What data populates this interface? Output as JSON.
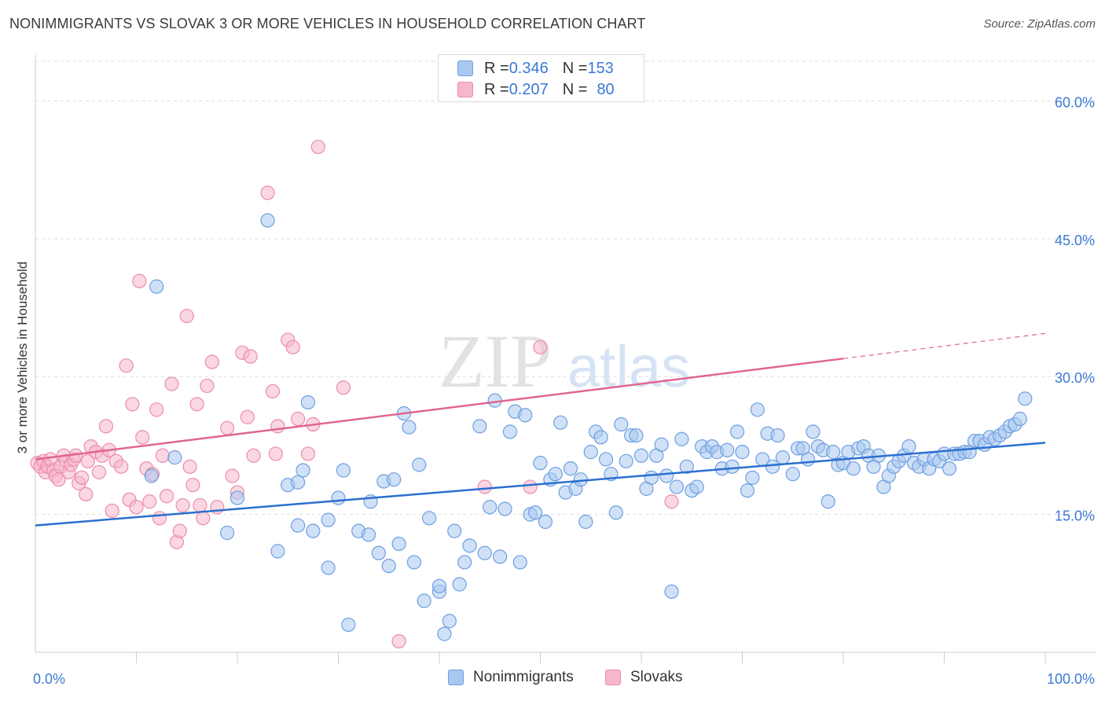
{
  "title": "NONIMMIGRANTS VS SLOVAK 3 OR MORE VEHICLES IN HOUSEHOLD CORRELATION CHART",
  "source": "Source: ZipAtlas.com",
  "watermark": {
    "zip": "ZIP",
    "atlas": "atlas"
  },
  "legend": {
    "rows": [
      {
        "r_label": "R = ",
        "r_value": "0.346",
        "n_label": "N = ",
        "n_value": "153"
      },
      {
        "r_label": "R = ",
        "r_value": "0.207",
        "n_label": "N = ",
        "n_value": "80"
      }
    ]
  },
  "bottom_legend": [
    "Nonimmigrants",
    "Slovaks"
  ],
  "colors": {
    "blue_fill": "#a9c8f0",
    "blue_stroke": "#6d9fe0",
    "blue_line": "#2b6fcf",
    "pink_fill": "#f6b7cb",
    "pink_stroke": "#ec8cab",
    "pink_line": "#e06690",
    "tick_label": "#3b78d6",
    "grid": "#dddddd"
  },
  "chart_data": {
    "type": "scatter",
    "xlabel": "",
    "ylabel": "3 or more Vehicles in Household",
    "xlim": [
      0,
      100
    ],
    "ylim": [
      0,
      65
    ],
    "x_ticks": [
      "0.0%",
      "100.0%"
    ],
    "y_ticks": [
      {
        "value": 15,
        "label": "15.0%"
      },
      {
        "value": 30,
        "label": "30.0%"
      },
      {
        "value": 45,
        "label": "45.0%"
      },
      {
        "value": 60,
        "label": "60.0%"
      }
    ],
    "grid": "horizontal dashed",
    "legend_position": "top-center",
    "series": [
      {
        "name": "Nonimmigrants",
        "color": "blue",
        "trend": {
          "x": [
            0,
            100
          ],
          "y": [
            13.8,
            22.8
          ],
          "dashed_from": null
        },
        "points": [
          [
            12,
            39.8
          ],
          [
            23,
            47
          ],
          [
            13.8,
            21.2
          ],
          [
            11.5,
            19.2
          ],
          [
            20,
            16.8
          ],
          [
            19,
            13
          ],
          [
            24,
            11
          ],
          [
            25,
            18.2
          ],
          [
            26,
            13.8
          ],
          [
            26,
            18.5
          ],
          [
            26.5,
            19.8
          ],
          [
            27,
            27.2
          ],
          [
            27.5,
            13.2
          ],
          [
            29,
            9.2
          ],
          [
            29,
            14.4
          ],
          [
            30,
            16.8
          ],
          [
            30.5,
            19.8
          ],
          [
            31,
            3
          ],
          [
            32,
            13.2
          ],
          [
            33,
            12.8
          ],
          [
            33.2,
            16.4
          ],
          [
            34,
            10.8
          ],
          [
            34.5,
            18.6
          ],
          [
            35,
            9.4
          ],
          [
            35.5,
            18.8
          ],
          [
            36,
            11.8
          ],
          [
            36.5,
            26
          ],
          [
            37,
            24.5
          ],
          [
            37.5,
            9.8
          ],
          [
            38,
            20.4
          ],
          [
            38.5,
            5.6
          ],
          [
            39,
            14.6
          ],
          [
            40,
            6.6
          ],
          [
            40,
            7.2
          ],
          [
            40.5,
            2
          ],
          [
            41,
            3.4
          ],
          [
            41.5,
            13.2
          ],
          [
            42,
            7.4
          ],
          [
            42.5,
            9.8
          ],
          [
            43,
            11.6
          ],
          [
            44,
            24.6
          ],
          [
            44.5,
            10.8
          ],
          [
            45,
            15.8
          ],
          [
            45.5,
            27.4
          ],
          [
            46,
            10.4
          ],
          [
            46.5,
            15.6
          ],
          [
            47,
            24
          ],
          [
            47.5,
            26.2
          ],
          [
            48,
            9.8
          ],
          [
            48.5,
            25.8
          ],
          [
            49,
            15
          ],
          [
            49.5,
            15.2
          ],
          [
            50,
            20.6
          ],
          [
            50.5,
            14.2
          ],
          [
            51,
            18.8
          ],
          [
            51.5,
            19.4
          ],
          [
            52,
            25
          ],
          [
            52.5,
            17.4
          ],
          [
            53,
            20
          ],
          [
            53.5,
            17.8
          ],
          [
            54,
            18.8
          ],
          [
            54.5,
            14.2
          ],
          [
            55,
            21.8
          ],
          [
            55.5,
            24
          ],
          [
            56,
            23.4
          ],
          [
            56.5,
            21
          ],
          [
            57,
            19.4
          ],
          [
            57.5,
            15.2
          ],
          [
            58,
            24.8
          ],
          [
            58.5,
            20.8
          ],
          [
            59,
            23.6
          ],
          [
            59.5,
            23.6
          ],
          [
            60,
            21.4
          ],
          [
            60.5,
            17.8
          ],
          [
            61,
            19
          ],
          [
            61.5,
            21.4
          ],
          [
            62,
            22.6
          ],
          [
            62.5,
            19.2
          ],
          [
            63,
            6.6
          ],
          [
            63.5,
            18
          ],
          [
            64,
            23.2
          ],
          [
            64.5,
            20.2
          ],
          [
            65,
            17.6
          ],
          [
            65.5,
            18
          ],
          [
            66,
            22.4
          ],
          [
            66.5,
            21.8
          ],
          [
            67,
            22.4
          ],
          [
            67.5,
            21.8
          ],
          [
            68,
            20
          ],
          [
            68.5,
            22
          ],
          [
            69,
            20.2
          ],
          [
            69.5,
            24
          ],
          [
            70,
            21.8
          ],
          [
            70.5,
            17.6
          ],
          [
            71,
            19
          ],
          [
            71.5,
            26.4
          ],
          [
            72,
            21
          ],
          [
            72.5,
            23.8
          ],
          [
            73,
            20.2
          ],
          [
            73.5,
            23.6
          ],
          [
            74,
            21.2
          ],
          [
            75,
            19.4
          ],
          [
            75.5,
            22.2
          ],
          [
            76,
            22.2
          ],
          [
            76.5,
            21
          ],
          [
            77,
            24
          ],
          [
            77.5,
            22.4
          ],
          [
            78,
            22
          ],
          [
            78.5,
            16.4
          ],
          [
            79,
            21.8
          ],
          [
            79.5,
            20.4
          ],
          [
            80,
            20.6
          ],
          [
            80.5,
            21.8
          ],
          [
            81,
            20
          ],
          [
            81.5,
            22.2
          ],
          [
            82,
            22.4
          ],
          [
            82.5,
            21.4
          ],
          [
            83,
            20.2
          ],
          [
            83.5,
            21.4
          ],
          [
            84,
            18
          ],
          [
            84.5,
            19.2
          ],
          [
            85,
            20.2
          ],
          [
            85.5,
            20.8
          ],
          [
            86,
            21.4
          ],
          [
            86.5,
            22.4
          ],
          [
            87,
            20.6
          ],
          [
            87.5,
            20.2
          ],
          [
            88,
            21
          ],
          [
            88.5,
            20
          ],
          [
            89,
            21
          ],
          [
            89.5,
            20.8
          ],
          [
            90,
            21.6
          ],
          [
            90.5,
            20
          ],
          [
            91,
            21.6
          ],
          [
            91.5,
            21.6
          ],
          [
            92,
            21.8
          ],
          [
            92.5,
            21.8
          ],
          [
            93,
            23
          ],
          [
            93.5,
            23
          ],
          [
            94,
            22.6
          ],
          [
            94.5,
            23.4
          ],
          [
            95,
            23.2
          ],
          [
            95.5,
            23.6
          ],
          [
            96,
            24
          ],
          [
            96.5,
            24.6
          ],
          [
            97,
            24.8
          ],
          [
            97.5,
            25.4
          ],
          [
            98,
            27.6
          ]
        ]
      },
      {
        "name": "Slovaks",
        "color": "pink",
        "trend": {
          "x": [
            0,
            100
          ],
          "y": [
            21.0,
            34.7
          ],
          "dashed_from": 80
        },
        "points": [
          [
            0.2,
            20.6
          ],
          [
            0.5,
            20.2
          ],
          [
            0.8,
            20.8
          ],
          [
            1,
            19.6
          ],
          [
            1.2,
            20.2
          ],
          [
            1.5,
            21
          ],
          [
            1.8,
            19.8
          ],
          [
            2,
            19.2
          ],
          [
            2.3,
            18.8
          ],
          [
            2.5,
            20.2
          ],
          [
            2.8,
            21.4
          ],
          [
            3,
            20.8
          ],
          [
            3.3,
            19.6
          ],
          [
            3.5,
            20.4
          ],
          [
            3.8,
            21
          ],
          [
            4,
            21.4
          ],
          [
            4.3,
            18.4
          ],
          [
            4.6,
            19
          ],
          [
            5,
            17.2
          ],
          [
            5.2,
            20.8
          ],
          [
            5.5,
            22.4
          ],
          [
            6,
            21.8
          ],
          [
            6.3,
            19.6
          ],
          [
            6.6,
            21.4
          ],
          [
            7,
            24.6
          ],
          [
            7.3,
            22
          ],
          [
            7.6,
            15.4
          ],
          [
            8,
            20.8
          ],
          [
            8.5,
            20.2
          ],
          [
            9,
            31.2
          ],
          [
            9.3,
            16.6
          ],
          [
            9.6,
            27
          ],
          [
            10,
            15.8
          ],
          [
            10.3,
            40.4
          ],
          [
            10.6,
            23.4
          ],
          [
            11,
            20
          ],
          [
            11.3,
            16.4
          ],
          [
            11.6,
            19.4
          ],
          [
            12,
            26.4
          ],
          [
            12.3,
            14.6
          ],
          [
            12.6,
            21.4
          ],
          [
            13,
            17
          ],
          [
            13.5,
            29.2
          ],
          [
            14,
            12
          ],
          [
            14.3,
            13.2
          ],
          [
            14.6,
            16
          ],
          [
            15,
            36.6
          ],
          [
            15.3,
            20.2
          ],
          [
            15.6,
            18.2
          ],
          [
            16,
            27
          ],
          [
            16.3,
            16
          ],
          [
            16.6,
            14.6
          ],
          [
            17,
            29
          ],
          [
            17.5,
            31.6
          ],
          [
            18,
            15.8
          ],
          [
            19,
            24.4
          ],
          [
            19.5,
            19.2
          ],
          [
            20,
            17.4
          ],
          [
            20.5,
            32.6
          ],
          [
            21,
            25.6
          ],
          [
            21.3,
            32.2
          ],
          [
            21.6,
            21.4
          ],
          [
            23,
            50
          ],
          [
            23.5,
            28.4
          ],
          [
            23.8,
            21.6
          ],
          [
            24,
            24.6
          ],
          [
            25,
            34
          ],
          [
            25.5,
            33.2
          ],
          [
            26,
            25.4
          ],
          [
            27,
            21.6
          ],
          [
            27.5,
            24.8
          ],
          [
            28,
            55
          ],
          [
            30.5,
            28.8
          ],
          [
            36,
            1.2
          ],
          [
            44.5,
            18
          ],
          [
            49,
            18
          ],
          [
            50,
            33.2
          ],
          [
            63,
            16.4
          ]
        ]
      }
    ]
  }
}
